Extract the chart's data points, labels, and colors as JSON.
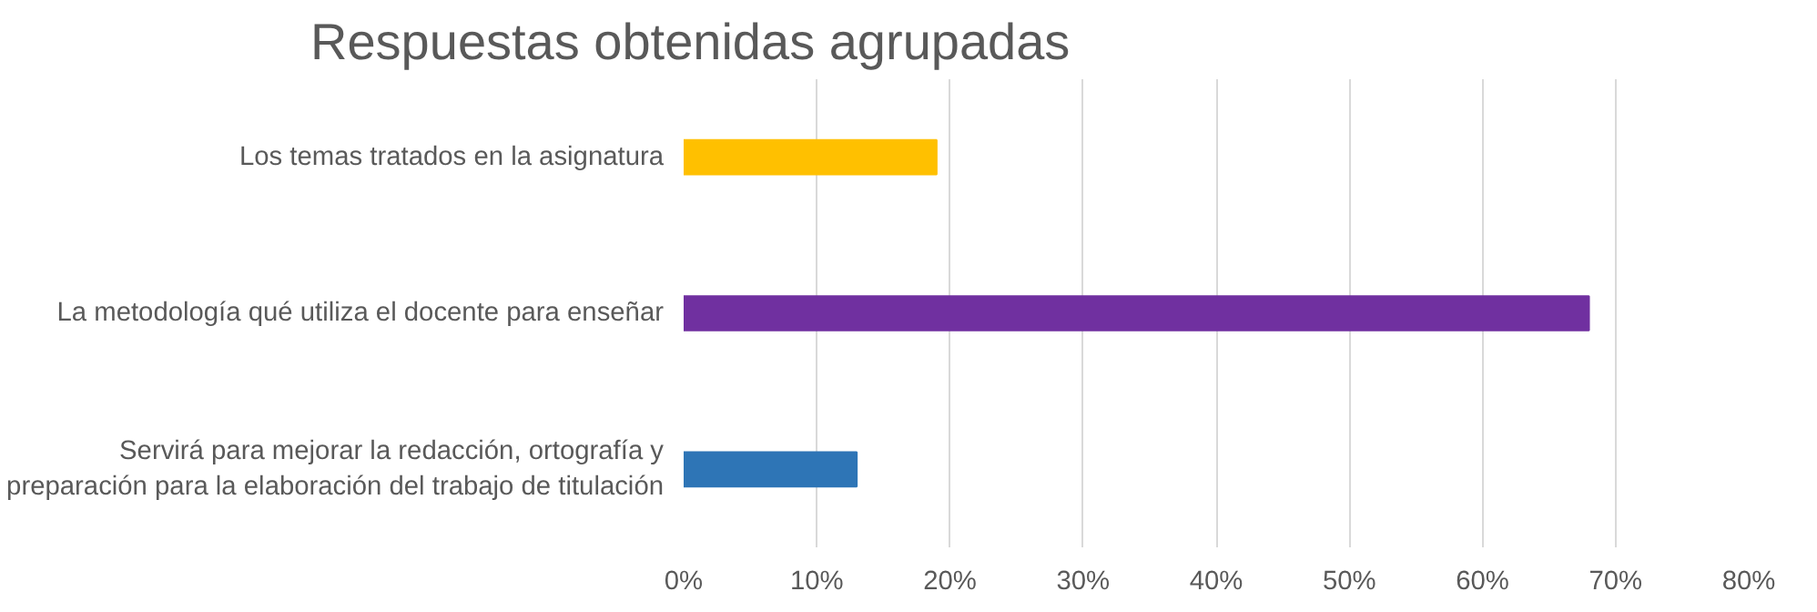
{
  "chart_data": {
    "type": "bar",
    "orientation": "horizontal",
    "title": "Respuestas obtenidas agrupadas",
    "categories": [
      "Los temas tratados en la asignatura",
      "La metodología qué utiliza el docente para enseñar",
      "Servirá para mejorar la redacción, ortografía y preparación para la elaboración del trabajo de titulación"
    ],
    "values": [
      19,
      68,
      13
    ],
    "colors": [
      "#ffc000",
      "#7030a0",
      "#2e75b6"
    ],
    "xlim": [
      0,
      80
    ],
    "xticks": [
      {
        "value": 0,
        "label": "0%"
      },
      {
        "value": 10,
        "label": "10%"
      },
      {
        "value": 20,
        "label": "20%"
      },
      {
        "value": 30,
        "label": "30%"
      },
      {
        "value": 40,
        "label": "40%"
      },
      {
        "value": 50,
        "label": "50%"
      },
      {
        "value": 60,
        "label": "60%"
      },
      {
        "value": 70,
        "label": "70%"
      },
      {
        "value": 80,
        "label": "80%"
      }
    ],
    "grid": "x"
  }
}
